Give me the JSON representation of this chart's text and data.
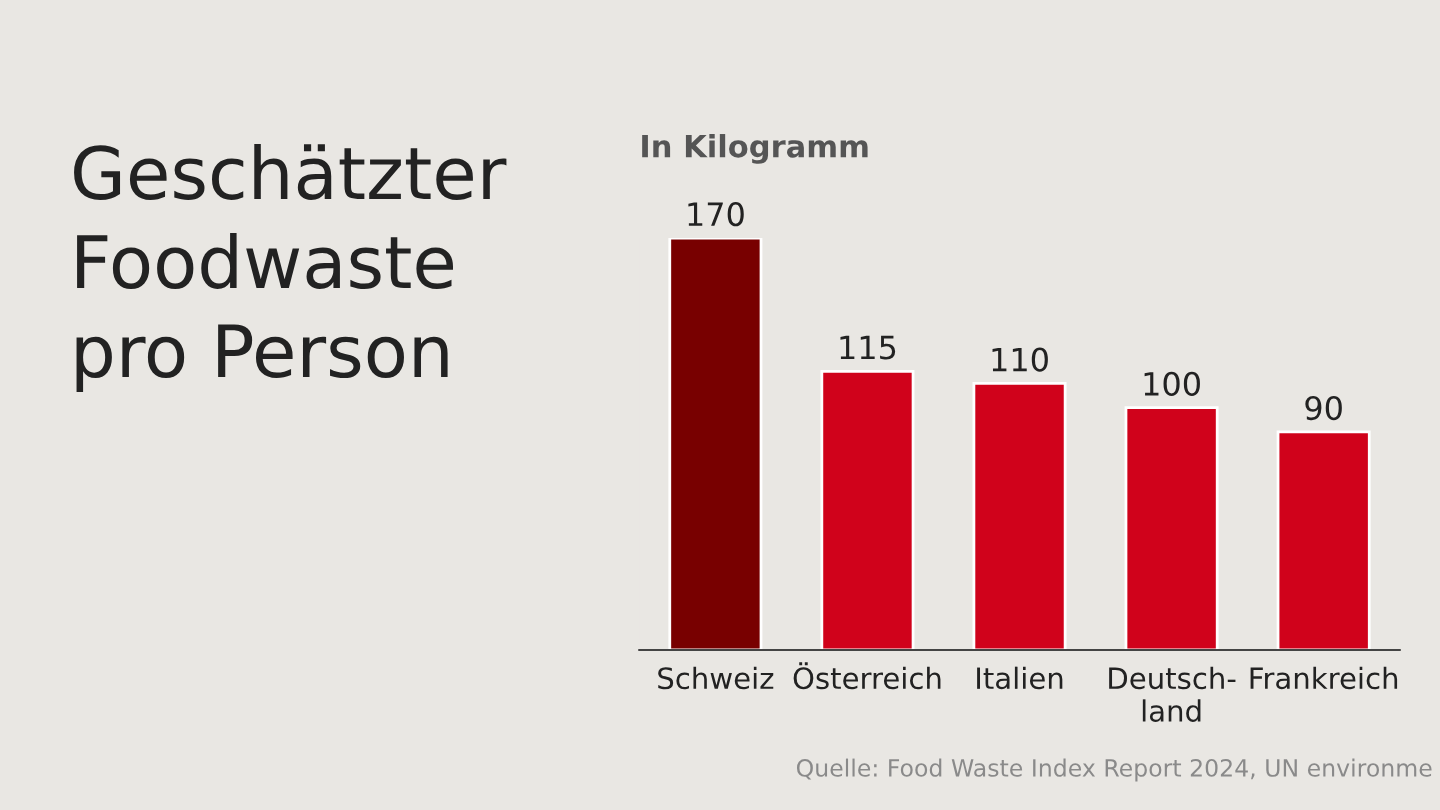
{
  "chart_data": {
    "type": "bar",
    "title": "Geschätzter\nFoodwaste\npro Person",
    "ylabel": "In Kilogramm",
    "categories": [
      "Schweiz",
      "Österreich",
      "Italien",
      "Deutsch-\nland",
      "Frankreich"
    ],
    "values": [
      170,
      115,
      110,
      100,
      90
    ],
    "colors": [
      "#780000",
      "#d0021b",
      "#d0021b",
      "#d0021b",
      "#d0021b"
    ],
    "data_labels": true,
    "grid": false,
    "legend": false,
    "annotations": [
      "Quelle: Food Waste Index Report 2024, UN environme"
    ]
  }
}
